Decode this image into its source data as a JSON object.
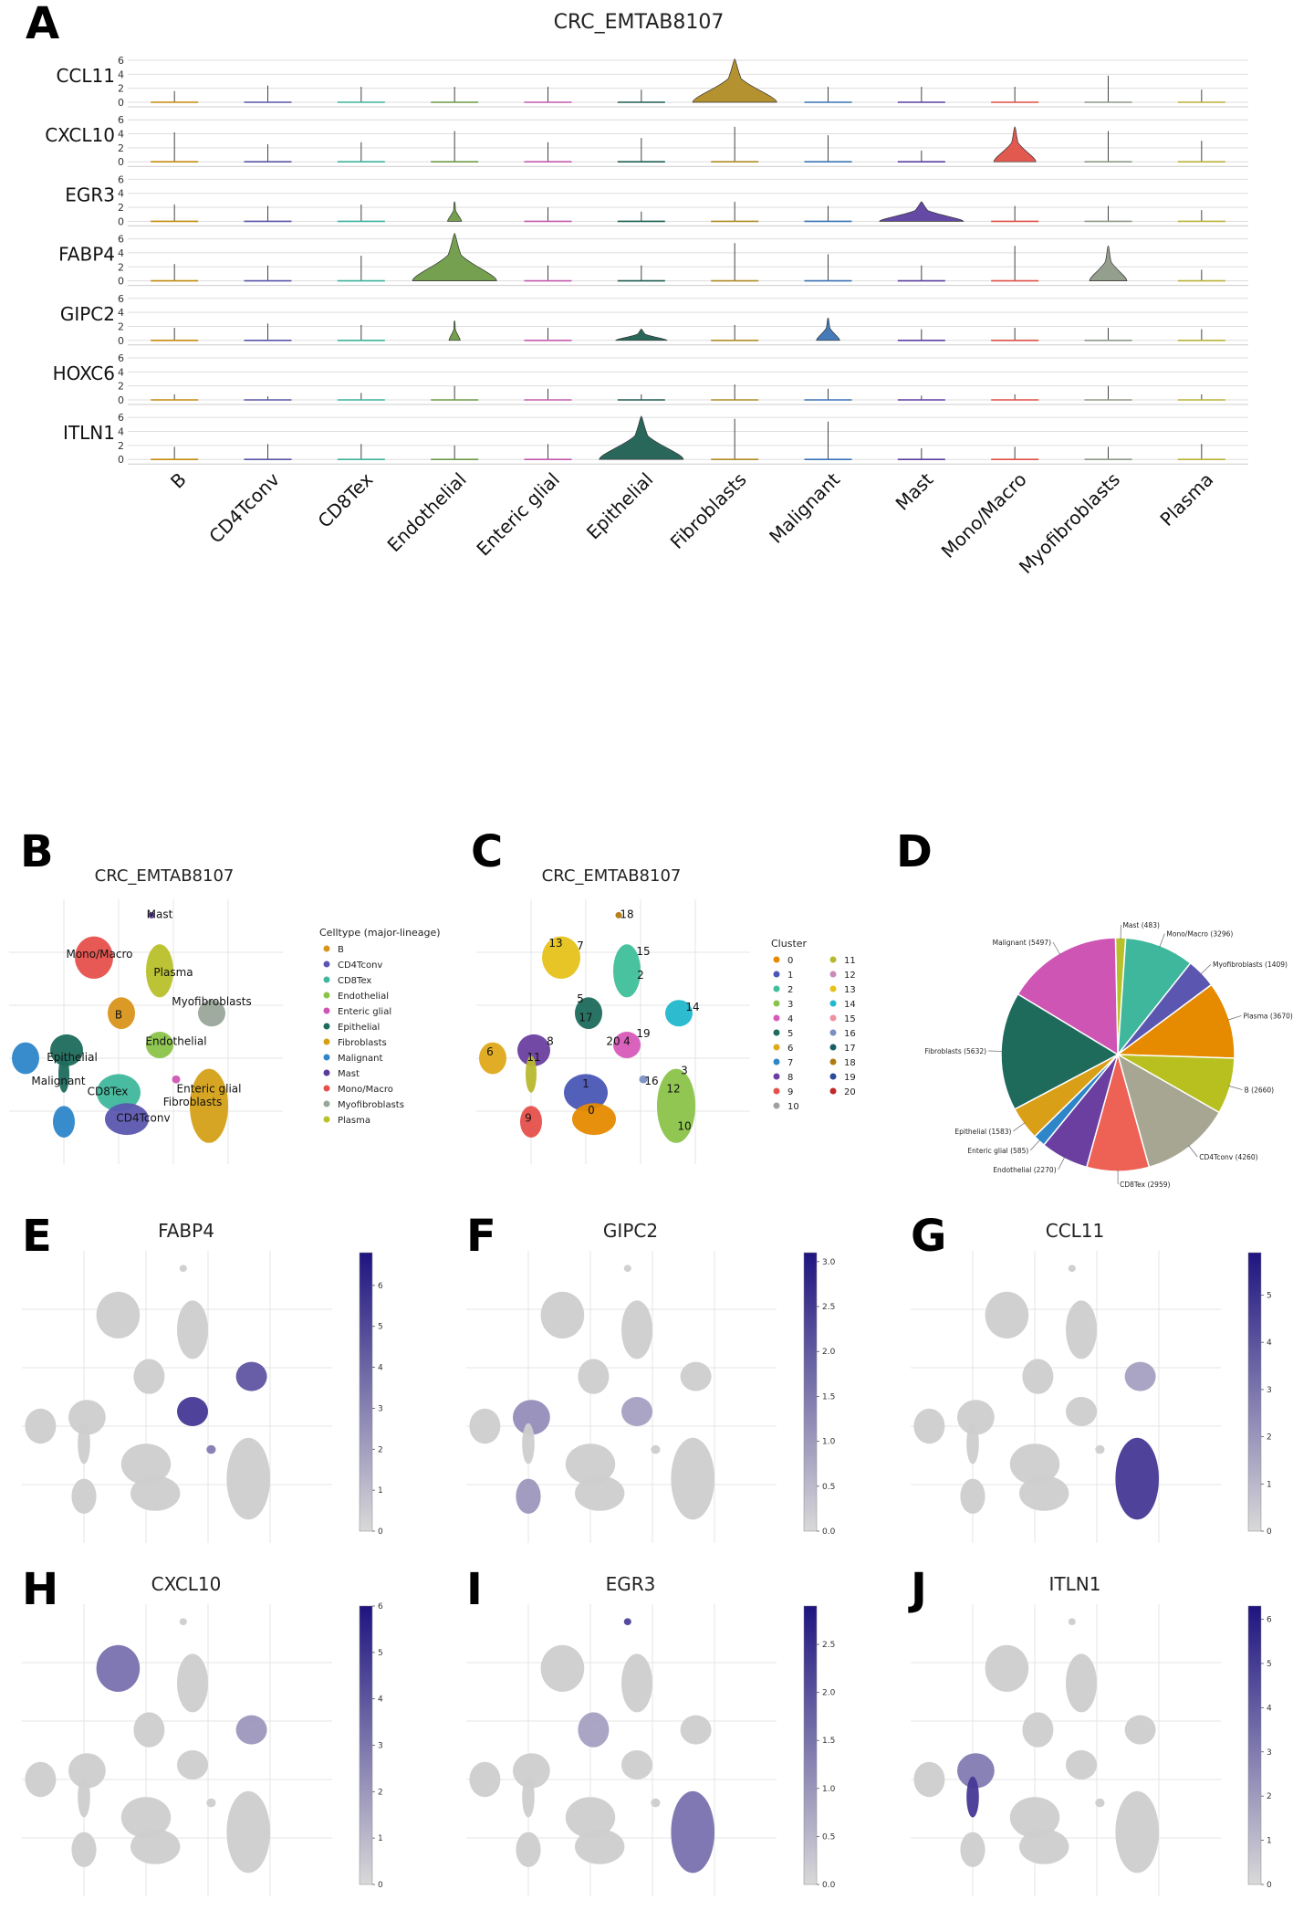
{
  "panel_a": {
    "letter": "A",
    "title": "CRC_EMTAB8107",
    "chart_data": {
      "type": "violin",
      "title": "CRC_EMTAB8107",
      "categories": [
        "B",
        "CD4Tconv",
        "CD8Tex",
        "Endothelial",
        "Enteric glial",
        "Epithelial",
        "Fibroblasts",
        "Malignant",
        "Mast",
        "Mono/Macro",
        "Myofibroblasts",
        "Plasma"
      ],
      "category_colors": [
        "#c58b0e",
        "#5856a8",
        "#3fb39b",
        "#6d9b46",
        "#c45bad",
        "#1f5f52",
        "#b08c25",
        "#3b74b5",
        "#5c3fa0",
        "#e05047",
        "#8f9a88",
        "#b9b23a"
      ],
      "ylim": [
        0,
        6
      ],
      "yticks": [
        "0",
        "2",
        "4",
        "6"
      ],
      "genes": [
        {
          "name": "CCL11",
          "max": [
            1.6,
            2.4,
            2.2,
            2.2,
            2.2,
            1.8,
            6.2,
            2.2,
            2.2,
            2.2,
            3.8,
            1.8
          ],
          "width": [
            0.05,
            0.05,
            0.05,
            0.05,
            0.05,
            0.05,
            0.9,
            0.05,
            0.05,
            0.05,
            0.05,
            0.05
          ]
        },
        {
          "name": "CXCL10",
          "max": [
            4.2,
            2.5,
            2.8,
            4.4,
            2.8,
            3.4,
            5.0,
            3.8,
            1.6,
            5.0,
            4.4,
            3.0
          ],
          "width": [
            0.05,
            0.05,
            0.05,
            0.05,
            0.05,
            0.05,
            0.05,
            0.05,
            0.05,
            0.45,
            0.05,
            0.05
          ]
        },
        {
          "name": "EGR3",
          "max": [
            2.4,
            2.2,
            2.4,
            2.8,
            2.0,
            1.4,
            2.8,
            2.2,
            2.8,
            2.2,
            2.2,
            1.6
          ],
          "width": [
            0.05,
            0.05,
            0.05,
            0.15,
            0.05,
            0.05,
            0.05,
            0.05,
            0.9,
            0.05,
            0.05,
            0.05
          ]
        },
        {
          "name": "FABP4",
          "max": [
            2.4,
            2.2,
            3.6,
            6.8,
            2.2,
            2.2,
            5.4,
            3.8,
            2.2,
            5.0,
            5.0,
            1.6
          ],
          "width": [
            0.05,
            0.05,
            0.05,
            0.9,
            0.05,
            0.05,
            0.08,
            0.05,
            0.05,
            0.05,
            0.4,
            0.05
          ]
        },
        {
          "name": "GIPC2",
          "max": [
            1.8,
            2.4,
            2.2,
            2.8,
            1.8,
            1.6,
            2.2,
            3.2,
            1.6,
            1.8,
            1.8,
            1.6
          ],
          "width": [
            0.05,
            0.05,
            0.05,
            0.12,
            0.05,
            0.55,
            0.05,
            0.25,
            0.05,
            0.05,
            0.05,
            0.05
          ]
        },
        {
          "name": "HOXC6",
          "max": [
            0.8,
            0.5,
            1.0,
            2.0,
            1.6,
            0.8,
            2.2,
            1.6,
            0.6,
            0.8,
            2.0,
            0.8
          ],
          "width": [
            0.05,
            0.05,
            0.05,
            0.05,
            0.05,
            0.05,
            0.05,
            0.05,
            0.05,
            0.05,
            0.05,
            0.05
          ]
        },
        {
          "name": "ITLN1",
          "max": [
            1.8,
            2.2,
            2.2,
            2.0,
            2.2,
            6.2,
            5.8,
            5.4,
            1.6,
            1.8,
            1.8,
            2.2
          ],
          "width": [
            0.05,
            0.05,
            0.05,
            0.05,
            0.05,
            0.9,
            0.05,
            0.05,
            0.05,
            0.05,
            0.05,
            0.05
          ]
        }
      ]
    }
  },
  "panel_b": {
    "letter": "B",
    "title": "CRC_EMTAB8107",
    "chart_data": {
      "type": "scatter",
      "title": "CRC_EMTAB8107",
      "legend_title": "Celltype (major-lineage)",
      "legend": [
        {
          "name": "B",
          "color": "#d9951b"
        },
        {
          "name": "CD4Tconv",
          "color": "#5b57b0"
        },
        {
          "name": "CD8Tex",
          "color": "#3fb79c"
        },
        {
          "name": "Endothelial",
          "color": "#8bc34a"
        },
        {
          "name": "Enteric glial",
          "color": "#cf55b5"
        },
        {
          "name": "Epithelial",
          "color": "#1e6b5c"
        },
        {
          "name": "Fibroblasts",
          "color": "#d4a017"
        },
        {
          "name": "Malignant",
          "color": "#2e86c9"
        },
        {
          "name": "Mast",
          "color": "#5a3c9a"
        },
        {
          "name": "Mono/Macro",
          "color": "#e6504b"
        },
        {
          "name": "Myofibroblasts",
          "color": "#9aa69a"
        },
        {
          "name": "Plasma",
          "color": "#b8c02a"
        }
      ],
      "labels": [
        "Mast",
        "Mono/Macro",
        "Plasma",
        "B",
        "Myofibroblasts",
        "Endothelial",
        "Epithelial",
        "Malignant",
        "CD8Tex",
        "Enteric glial",
        "Fibroblasts",
        "CD4Tconv"
      ]
    }
  },
  "panel_c": {
    "letter": "C",
    "title": "CRC_EMTAB8107",
    "chart_data": {
      "type": "scatter",
      "title": "CRC_EMTAB8107",
      "legend_title": "Cluster",
      "legend": [
        {
          "name": "0",
          "color": "#e68a00"
        },
        {
          "name": "1",
          "color": "#4a57b5"
        },
        {
          "name": "2",
          "color": "#3fbf9b"
        },
        {
          "name": "3",
          "color": "#8bc34a"
        },
        {
          "name": "4",
          "color": "#d65ab8"
        },
        {
          "name": "5",
          "color": "#1e6b5c"
        },
        {
          "name": "6",
          "color": "#e0a91a"
        },
        {
          "name": "7",
          "color": "#2e86c9"
        },
        {
          "name": "8",
          "color": "#6a3fa0"
        },
        {
          "name": "9",
          "color": "#e6504b"
        },
        {
          "name": "10",
          "color": "#a0a0a0"
        },
        {
          "name": "11",
          "color": "#b8b830"
        },
        {
          "name": "12",
          "color": "#c98ab8"
        },
        {
          "name": "13",
          "color": "#e6c21a"
        },
        {
          "name": "14",
          "color": "#22b8cc"
        },
        {
          "name": "15",
          "color": "#f08fa0"
        },
        {
          "name": "16",
          "color": "#7a8fc2"
        },
        {
          "name": "17",
          "color": "#1a5f66"
        },
        {
          "name": "18",
          "color": "#b07a10"
        },
        {
          "name": "19",
          "color": "#2c4a9a"
        },
        {
          "name": "20",
          "color": "#c02a2a"
        }
      ],
      "labels": [
        "18",
        "13",
        "7",
        "15",
        "2",
        "5",
        "17",
        "14",
        "19",
        "20",
        "4",
        "6",
        "8",
        "11",
        "3",
        "16",
        "12",
        "1",
        "0",
        "9",
        "10"
      ]
    }
  },
  "panel_d": {
    "letter": "D",
    "chart_data": {
      "type": "pie",
      "slices": [
        {
          "label": "Mast (483)",
          "value": 483,
          "color": "#b8c02a"
        },
        {
          "label": "Mono/Macro (3296)",
          "value": 3296,
          "color": "#3fb79c"
        },
        {
          "label": "Myofibroblasts (1409)",
          "value": 1409,
          "color": "#5b57b0"
        },
        {
          "label": "Plasma (3670)",
          "value": 3670,
          "color": "#e68a00"
        },
        {
          "label": "B (2660)",
          "value": 2660,
          "color": "#b8c020"
        },
        {
          "label": "CD4Tconv (4260)",
          "value": 4260,
          "color": "#a6a692"
        },
        {
          "label": "CD8Tex (2959)",
          "value": 2959,
          "color": "#ee6155"
        },
        {
          "label": "Endothelial (2270)",
          "value": 2270,
          "color": "#6a3fa0"
        },
        {
          "label": "Enteric glial (585)",
          "value": 585,
          "color": "#2e86c9"
        },
        {
          "label": "Epithelial (1583)",
          "value": 1583,
          "color": "#d9a017"
        },
        {
          "label": "Fibroblasts (5632)",
          "value": 5632,
          "color": "#1e6b5c"
        },
        {
          "label": "Malignant (5497)",
          "value": 5497,
          "color": "#cf55b5"
        }
      ]
    }
  },
  "feature_plots": [
    {
      "letter": "E",
      "gene": "FABP4",
      "colorbar_ticks": [
        "0",
        "1",
        "2",
        "3",
        "4",
        "5",
        "6"
      ],
      "max": 6.8
    },
    {
      "letter": "F",
      "gene": "GIPC2",
      "colorbar_ticks": [
        "0.0",
        "0.5",
        "1.0",
        "1.5",
        "2.0",
        "2.5",
        "3.0"
      ],
      "max": 3.1
    },
    {
      "letter": "G",
      "gene": "CCL11",
      "colorbar_ticks": [
        "0",
        "1",
        "2",
        "3",
        "4",
        "5"
      ],
      "max": 5.9
    },
    {
      "letter": "H",
      "gene": "CXCL10",
      "colorbar_ticks": [
        "0",
        "1",
        "2",
        "3",
        "4",
        "5",
        "6"
      ],
      "max": 6.0
    },
    {
      "letter": "I",
      "gene": "EGR3",
      "colorbar_ticks": [
        "0.0",
        "0.5",
        "1.0",
        "1.5",
        "2.0",
        "2.5"
      ],
      "max": 2.9
    },
    {
      "letter": "J",
      "gene": "ITLN1",
      "colorbar_ticks": [
        "0",
        "1",
        "2",
        "3",
        "4",
        "5",
        "6"
      ],
      "max": 6.3
    }
  ],
  "colors": {
    "grid": "#dddddd",
    "umap_grey": "#c9c9c9",
    "high": "#2a1c8a",
    "low": "#d9d9d9"
  }
}
